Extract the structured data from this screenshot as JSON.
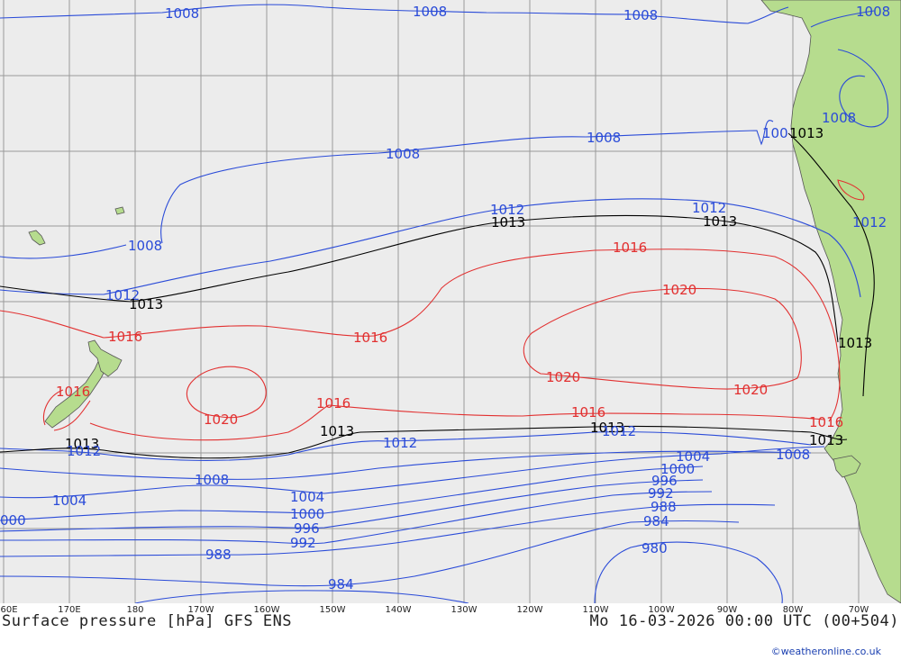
{
  "colors": {
    "ocean": "#ececec",
    "land": "#b6dc8e",
    "grid": "#9a9a9a",
    "iso_low": "#2a4bd8",
    "iso_std": "#000000",
    "iso_high": "#e23030",
    "credit": "#1a3fb0"
  },
  "footer": {
    "title": "Surface pressure [hPa] GFS ENS",
    "valid_time": "Mo 16-03-2026 00:00 UTC (00+504)",
    "credit": "©weatheronline.co.uk"
  },
  "longitude_labels": [
    "60E",
    "170E",
    "180",
    "170W",
    "160W",
    "150W",
    "140W",
    "130W",
    "120W",
    "110W",
    "100W",
    "90W",
    "80W",
    "70W"
  ],
  "isobar_labels": [
    {
      "text": "1008",
      "level": 1008
    },
    {
      "text": "1008",
      "level": 1008
    },
    {
      "text": "1008",
      "level": 1008
    },
    {
      "text": "1008",
      "level": 1008
    },
    {
      "text": "1008",
      "level": 1008
    },
    {
      "text": "1008",
      "level": 1008
    },
    {
      "text": "1008",
      "level": 1008
    },
    {
      "text": "100",
      "level": 1008
    },
    {
      "text": "1013",
      "level": 1013
    },
    {
      "text": "1012",
      "level": 1012
    },
    {
      "text": "1013",
      "level": 1013
    },
    {
      "text": "1012",
      "level": 1012
    },
    {
      "text": "1013",
      "level": 1013
    },
    {
      "text": "1012",
      "level": 1012
    },
    {
      "text": "1016",
      "level": 1016
    },
    {
      "text": "1012",
      "level": 1012
    },
    {
      "text": "1008",
      "level": 1008
    },
    {
      "text": "1013",
      "level": 1013
    },
    {
      "text": "1020",
      "level": 1020
    },
    {
      "text": "1016",
      "level": 1016
    },
    {
      "text": "1016",
      "level": 1016
    },
    {
      "text": "1013",
      "level": 1013
    },
    {
      "text": "1020",
      "level": 1020
    },
    {
      "text": "1020",
      "level": 1020
    },
    {
      "text": "1016",
      "level": 1016
    },
    {
      "text": "1020",
      "level": 1020
    },
    {
      "text": "1016",
      "level": 1016
    },
    {
      "text": "1016",
      "level": 1016
    },
    {
      "text": "1016",
      "level": 1016
    },
    {
      "text": "1013",
      "level": 1013
    },
    {
      "text": "1013",
      "level": 1013
    },
    {
      "text": "1012",
      "level": 1012
    },
    {
      "text": "1013",
      "level": 1013
    },
    {
      "text": "1013",
      "level": 1013
    },
    {
      "text": "1012",
      "level": 1012
    },
    {
      "text": "1012",
      "level": 1012
    },
    {
      "text": "1008",
      "level": 1008
    },
    {
      "text": "1004",
      "level": 1004
    },
    {
      "text": "1008",
      "level": 1008
    },
    {
      "text": "1000",
      "level": 1000
    },
    {
      "text": "996",
      "level": 996
    },
    {
      "text": "1004",
      "level": 1004
    },
    {
      "text": "992",
      "level": 992
    },
    {
      "text": "1004",
      "level": 1004
    },
    {
      "text": "988",
      "level": 988
    },
    {
      "text": "1000",
      "level": 1000
    },
    {
      "text": "000",
      "level": 1000
    },
    {
      "text": "984",
      "level": 984
    },
    {
      "text": "996",
      "level": 996
    },
    {
      "text": "992",
      "level": 992
    },
    {
      "text": "980",
      "level": 980
    },
    {
      "text": "988",
      "level": 988
    },
    {
      "text": "984",
      "level": 984
    }
  ]
}
